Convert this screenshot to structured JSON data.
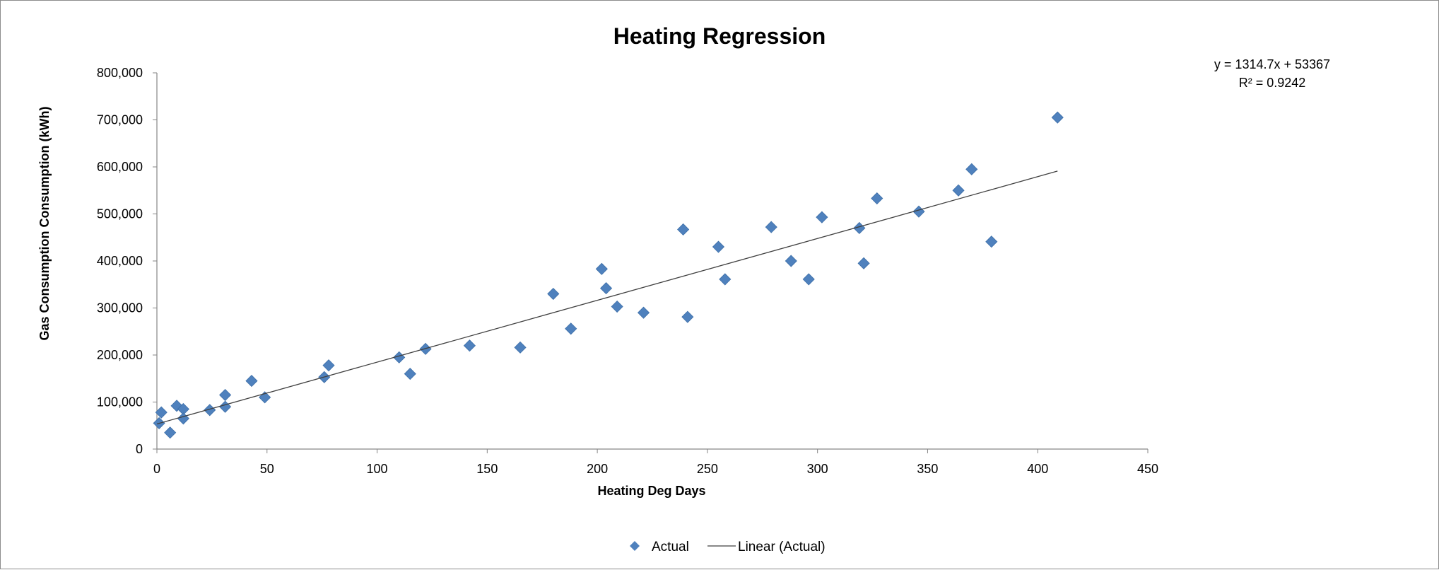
{
  "chart_data": {
    "type": "scatter",
    "title": "Heating Regression",
    "xlabel": "Heating Deg Days",
    "ylabel": "Gas Consumption Consumption (kWh)",
    "xlim": [
      0,
      450
    ],
    "ylim": [
      0,
      800000
    ],
    "x_ticks": [
      0,
      50,
      100,
      150,
      200,
      250,
      300,
      350,
      400,
      450
    ],
    "y_ticks": [
      0,
      100000,
      200000,
      300000,
      400000,
      500000,
      600000,
      700000,
      800000
    ],
    "x_tick_labels": [
      "0",
      "50",
      "100",
      "150",
      "200",
      "250",
      "300",
      "350",
      "400",
      "450"
    ],
    "y_tick_labels": [
      "0",
      "100,000",
      "200,000",
      "300,000",
      "400,000",
      "500,000",
      "600,000",
      "700,000",
      "800,000"
    ],
    "grid": false,
    "legend_position": "bottom",
    "series": [
      {
        "name": "Actual",
        "color": "#4F81BD",
        "marker": "diamond",
        "points": [
          [
            2,
            78000
          ],
          [
            1,
            55000
          ],
          [
            6,
            35000
          ],
          [
            9,
            92000
          ],
          [
            12,
            85000
          ],
          [
            12,
            65000
          ],
          [
            24,
            83000
          ],
          [
            31,
            115000
          ],
          [
            31,
            90000
          ],
          [
            43,
            145000
          ],
          [
            49,
            110000
          ],
          [
            76,
            153000
          ],
          [
            78,
            178000
          ],
          [
            110,
            195000
          ],
          [
            115,
            160000
          ],
          [
            122,
            213000
          ],
          [
            142,
            220000
          ],
          [
            165,
            216000
          ],
          [
            180,
            330000
          ],
          [
            188,
            256000
          ],
          [
            202,
            383000
          ],
          [
            204,
            342000
          ],
          [
            209,
            303000
          ],
          [
            221,
            290000
          ],
          [
            239,
            467000
          ],
          [
            241,
            281000
          ],
          [
            255,
            430000
          ],
          [
            258,
            361000
          ],
          [
            279,
            472000
          ],
          [
            288,
            400000
          ],
          [
            296,
            361000
          ],
          [
            302,
            493000
          ],
          [
            319,
            470000
          ],
          [
            321,
            395000
          ],
          [
            327,
            533000
          ],
          [
            346,
            505000
          ],
          [
            364,
            550000
          ],
          [
            370,
            595000
          ],
          [
            379,
            441000
          ],
          [
            409,
            705000
          ]
        ]
      }
    ],
    "trendline": {
      "name": "Linear (Actual)",
      "color": "#404040",
      "slope": 1314.7,
      "intercept": 53367,
      "x_range": [
        0,
        409
      ],
      "equation_text": "y = 1314.7x + 53367",
      "r2_text": "R² = 0.9242"
    }
  }
}
